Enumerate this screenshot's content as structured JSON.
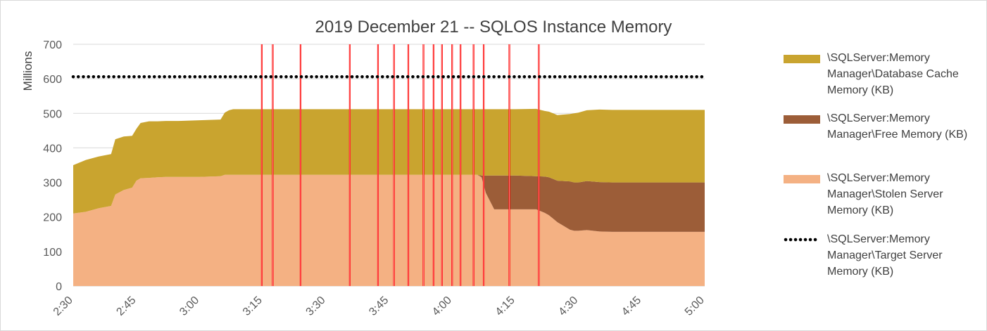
{
  "chart_data": {
    "type": "area",
    "title": "2019 December 21 -- SQLOS Instance Memory",
    "ylabel": "Millions",
    "xlabel": "",
    "ylim": [
      0,
      700
    ],
    "yticks": [
      0,
      100,
      200,
      300,
      400,
      500,
      600,
      700
    ],
    "xlim_minutes": [
      0,
      150
    ],
    "xtick_labels": [
      "2:30",
      "2:45",
      "3:00",
      "3:15",
      "3:30",
      "3:45",
      "4:00",
      "4:15",
      "4:30",
      "4:45",
      "5:00"
    ],
    "grid": true,
    "legend_position": "right",
    "x_minutes": [
      0,
      3,
      6,
      9,
      10,
      12,
      14,
      15,
      16,
      18,
      20,
      22,
      25,
      30,
      35,
      36,
      37,
      38,
      40,
      45,
      50,
      60,
      70,
      80,
      90,
      96,
      97,
      98,
      100,
      105,
      110,
      112,
      113,
      114,
      115,
      118,
      119,
      120,
      122,
      125,
      128,
      130,
      135,
      140,
      145,
      150
    ],
    "series": [
      {
        "name": "\\SQLServer:Memory Manager\\Stolen Server Memory (KB)",
        "color": "#f4b183",
        "values": [
          210,
          215,
          225,
          232,
          265,
          278,
          285,
          305,
          312,
          313,
          315,
          316,
          316,
          316,
          318,
          322,
          322,
          322,
          322,
          322,
          322,
          322,
          322,
          322,
          322,
          322,
          315,
          270,
          222,
          222,
          222,
          212,
          205,
          195,
          185,
          163,
          160,
          160,
          162,
          158,
          157,
          157,
          157,
          157,
          157,
          157
        ]
      },
      {
        "name": "\\SQLServer:Memory Manager\\Free Memory (KB)",
        "color": "#9c5d38",
        "values": [
          0,
          0,
          0,
          0,
          0,
          0,
          0,
          0,
          0,
          0,
          0,
          0,
          0,
          0,
          0,
          0,
          0,
          0,
          0,
          0,
          0,
          0,
          0,
          0,
          0,
          0,
          5,
          50,
          98,
          98,
          96,
          105,
          110,
          115,
          120,
          140,
          140,
          140,
          142,
          143,
          143,
          143,
          143,
          143,
          143,
          143
        ]
      },
      {
        "name": "\\SQLServer:Memory Manager\\Database Cache Memory (KB)",
        "color": "#c9a42f",
        "values": [
          140,
          150,
          150,
          150,
          160,
          155,
          150,
          150,
          160,
          164,
          162,
          162,
          162,
          164,
          164,
          180,
          187,
          190,
          190,
          190,
          190,
          190,
          190,
          190,
          190,
          190,
          192,
          192,
          192,
          192,
          195,
          190,
          190,
          190,
          190,
          195,
          200,
          202,
          205,
          210,
          210,
          210,
          210,
          210,
          210,
          210
        ]
      },
      {
        "name": "\\SQLServer:Memory Manager\\Target Server Memory (KB)",
        "color": "#000000",
        "style": "dotted",
        "values": [
          606,
          606,
          606,
          606,
          606,
          606,
          606,
          606,
          606,
          606,
          606,
          606,
          606,
          606,
          606,
          606,
          606,
          606,
          606,
          606,
          606,
          606,
          606,
          606,
          606,
          606,
          606,
          606,
          606,
          606,
          606,
          606,
          606,
          606,
          606,
          606,
          606,
          606,
          606,
          606,
          606,
          606,
          606,
          606,
          606,
          606
        ]
      }
    ],
    "event_markers": {
      "color": "#ff0000",
      "x_minutes": [
        44.8,
        47.4,
        54.0,
        65.7,
        72.4,
        76.2,
        79.6,
        83.2,
        85.6,
        87.6,
        90.0,
        92.0,
        95.1,
        97.5,
        103.6,
        110.6
      ]
    }
  },
  "legend": {
    "items": [
      {
        "label": "\\SQLServer:Memory\nManager\\Database Cache\nMemory (KB)",
        "color": "#c9a42f"
      },
      {
        "label": "\\SQLServer:Memory\nManager\\Free Memory (KB)",
        "color": "#9c5d38"
      },
      {
        "label": "\\SQLServer:Memory\nManager\\Stolen Server\nMemory (KB)",
        "color": "#f4b183"
      },
      {
        "label": "\\SQLServer:Memory\nManager\\Target Server\nMemory (KB)",
        "color": "#000000"
      }
    ]
  }
}
